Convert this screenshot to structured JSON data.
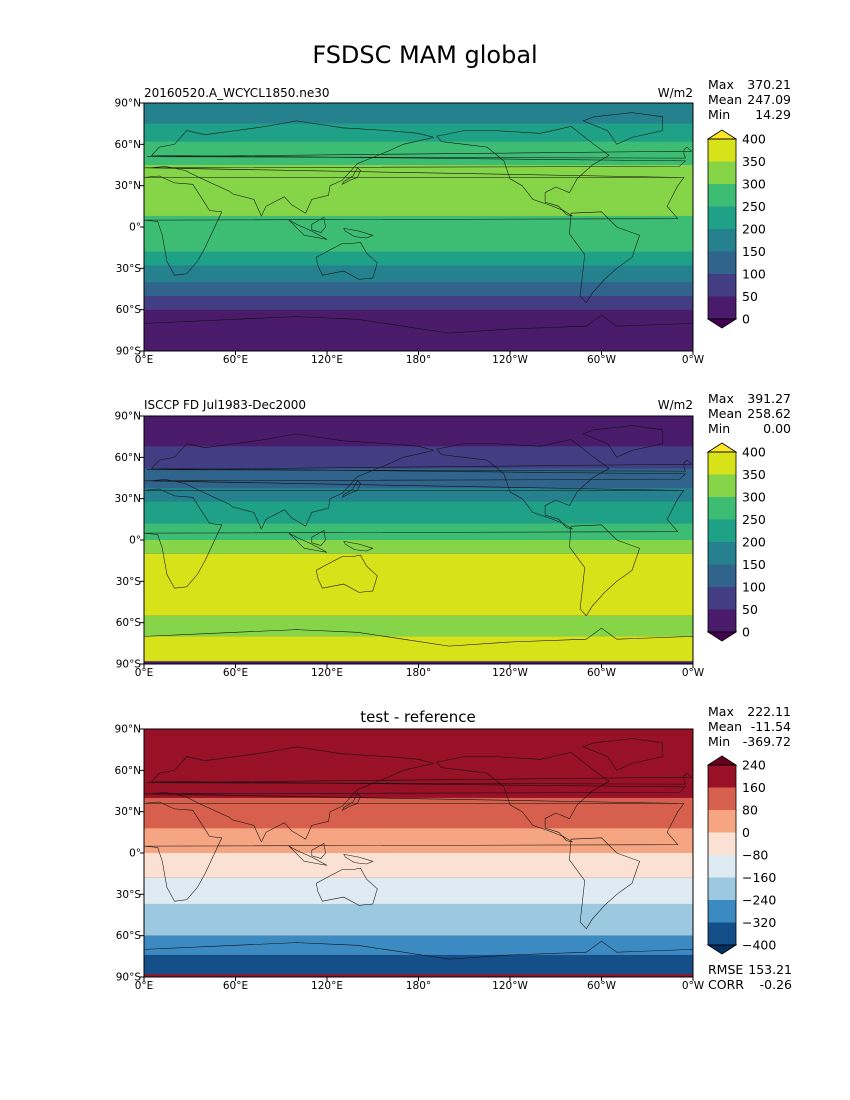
{
  "figure_title": "FSDSC MAM global",
  "chart_data": [
    {
      "type": "heatmap",
      "subtitle_left": "20160520.A_WCYCL1850.ne30",
      "units": "W/m2",
      "stats": {
        "labels": [
          "Max",
          "Mean",
          "Min"
        ],
        "values": [
          "370.21",
          "247.09",
          "14.29"
        ]
      },
      "x_ticks": [
        "0°E",
        "60°E",
        "120°E",
        "180°",
        "120°W",
        "60°W",
        "0°W"
      ],
      "y_ticks": [
        "90°N",
        "60°N",
        "30°N",
        "0°",
        "30°S",
        "60°S",
        "90°S"
      ],
      "xlim": [
        0,
        360
      ],
      "ylim": [
        -90,
        90
      ],
      "levels": [
        0,
        50,
        100,
        150,
        200,
        250,
        300,
        350,
        400
      ],
      "colorbar_labels": [
        "0",
        "50",
        "100",
        "150",
        "200",
        "250",
        "300",
        "350",
        "400"
      ],
      "colors": [
        "#4a1a6b",
        "#433d84",
        "#31648c",
        "#26818e",
        "#1fa188",
        "#3dbc74",
        "#86d549",
        "#d8e219"
      ],
      "extend_colors": [
        "#440154",
        "#fde725"
      ],
      "bands": [
        {
          "lat": [
            75,
            90
          ],
          "level": 3
        },
        {
          "lat": [
            62,
            75
          ],
          "level": 4
        },
        {
          "lat": [
            45,
            62
          ],
          "level": 5
        },
        {
          "lat": [
            8,
            45
          ],
          "level": 6
        },
        {
          "lat": [
            -18,
            8
          ],
          "level": 5
        },
        {
          "lat": [
            -28,
            -18
          ],
          "level": 4
        },
        {
          "lat": [
            -40,
            -28
          ],
          "level": 3
        },
        {
          "lat": [
            -50,
            -40
          ],
          "level": 2
        },
        {
          "lat": [
            -60,
            -50
          ],
          "level": 1
        },
        {
          "lat": [
            -90,
            -60
          ],
          "level": 0
        }
      ]
    },
    {
      "type": "heatmap",
      "subtitle_left": "ISCCP FD Jul1983-Dec2000",
      "units": "W/m2",
      "stats": {
        "labels": [
          "Max",
          "Mean",
          "Min"
        ],
        "values": [
          "391.27",
          "258.62",
          "0.00"
        ]
      },
      "x_ticks": [
        "0°E",
        "60°E",
        "120°E",
        "180°",
        "120°W",
        "60°W",
        "0°W"
      ],
      "y_ticks": [
        "90°N",
        "60°N",
        "30°N",
        "0°",
        "30°S",
        "60°S",
        "90°S"
      ],
      "xlim": [
        0,
        360
      ],
      "ylim": [
        -90,
        90
      ],
      "levels": [
        0,
        50,
        100,
        150,
        200,
        250,
        300,
        350,
        400
      ],
      "colorbar_labels": [
        "0",
        "50",
        "100",
        "150",
        "200",
        "250",
        "300",
        "350",
        "400"
      ],
      "colors": [
        "#4a1a6b",
        "#433d84",
        "#31648c",
        "#26818e",
        "#1fa188",
        "#3dbc74",
        "#86d549",
        "#d8e219"
      ],
      "extend_colors": [
        "#440154",
        "#fde725"
      ],
      "bands": [
        {
          "lat": [
            68,
            88
          ],
          "level": 0
        },
        {
          "lat": [
            52,
            68
          ],
          "level": 1
        },
        {
          "lat": [
            38,
            52
          ],
          "level": 2
        },
        {
          "lat": [
            28,
            38
          ],
          "level": 3
        },
        {
          "lat": [
            12,
            28
          ],
          "level": 4
        },
        {
          "lat": [
            0,
            12
          ],
          "level": 5
        },
        {
          "lat": [
            -10,
            0
          ],
          "level": 6
        },
        {
          "lat": [
            -55,
            -10
          ],
          "level": 7
        },
        {
          "lat": [
            -70,
            -55
          ],
          "level": 6
        },
        {
          "lat": [
            -88,
            -70
          ],
          "level": 7
        }
      ]
    },
    {
      "type": "heatmap",
      "title": "test - reference",
      "stats": {
        "labels": [
          "Max",
          "Mean",
          "Min"
        ],
        "values": [
          "222.11",
          "-11.54",
          "-369.72"
        ]
      },
      "x_ticks": [
        "0°E",
        "60°E",
        "120°E",
        "180°",
        "120°W",
        "60°W",
        "0°W"
      ],
      "y_ticks": [
        "90°N",
        "60°N",
        "30°N",
        "0°",
        "30°S",
        "60°S",
        "90°S"
      ],
      "xlim": [
        0,
        360
      ],
      "ylim": [
        -90,
        90
      ],
      "levels": [
        -400,
        -320,
        -240,
        -160,
        -80,
        0,
        80,
        160,
        240
      ],
      "colorbar_labels": [
        "−400",
        "−320",
        "−240",
        "−160",
        "−80",
        "0",
        "80",
        "160",
        "240"
      ],
      "colors": [
        "#154f8a",
        "#3c8ac2",
        "#9cc9e0",
        "#deebf2",
        "#fbe1d3",
        "#f5a582",
        "#d6604d",
        "#981126"
      ],
      "extend_colors": [
        "#053061",
        "#67001f"
      ],
      "bands": [
        {
          "lat": [
            40,
            88
          ],
          "level": 7
        },
        {
          "lat": [
            18,
            40
          ],
          "level": 6
        },
        {
          "lat": [
            0,
            18
          ],
          "level": 5
        },
        {
          "lat": [
            -18,
            0
          ],
          "level": 4
        },
        {
          "lat": [
            -37,
            -18
          ],
          "level": 3
        },
        {
          "lat": [
            -60,
            -37
          ],
          "level": 2
        },
        {
          "lat": [
            -74,
            -60
          ],
          "level": 1
        },
        {
          "lat": [
            -88,
            -74
          ],
          "level": 0
        }
      ],
      "metrics": {
        "labels": [
          "RMSE",
          "CORR"
        ],
        "values": [
          "153.21",
          "-0.26"
        ]
      }
    }
  ]
}
